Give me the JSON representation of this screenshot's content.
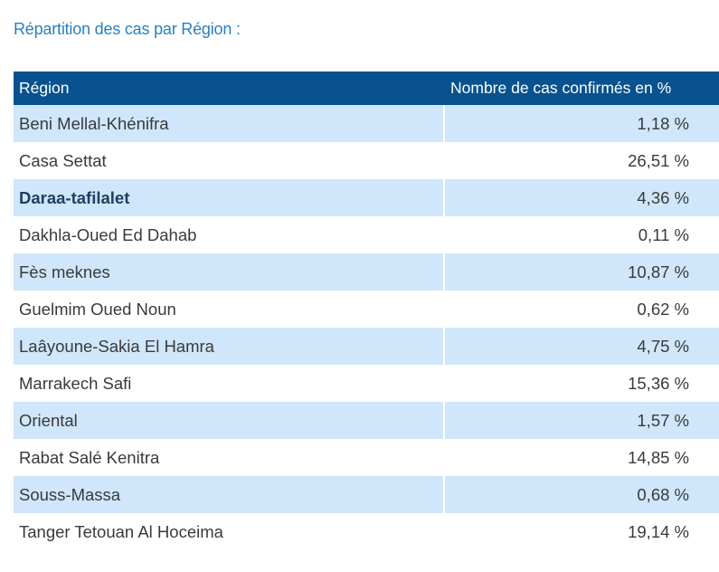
{
  "caption": "Répartition des cas par Région :",
  "table": {
    "headers": {
      "region": "Région",
      "value": "Nombre de cas confirmés en %"
    },
    "rows": [
      {
        "region": "Beni Mellal-Khénifra",
        "value": "1,18 %"
      },
      {
        "region": "Casa Settat",
        "value": "26,51 %"
      },
      {
        "region": "Daraa-tafilalet",
        "value": "4,36 %"
      },
      {
        "region": "Dakhla-Oued Ed Dahab",
        "value": "0,11 %"
      },
      {
        "region": "Fès meknes",
        "value": "10,87 %"
      },
      {
        "region": "Guelmim Oued Noun",
        "value": "0,62 %"
      },
      {
        "region": "Laâyoune-Sakia El Hamra",
        "value": "4,75 %"
      },
      {
        "region": "Marrakech Safi",
        "value": "15,36 %"
      },
      {
        "region": "Oriental",
        "value": "1,57 %"
      },
      {
        "region": "Rabat Salé Kenitra",
        "value": "14,85 %"
      },
      {
        "region": "Souss-Massa",
        "value": "0,68 %"
      },
      {
        "region": "Tanger Tetouan Al Hoceima",
        "value": "19,14 %"
      }
    ]
  },
  "colors": {
    "header_bg": "#08528f",
    "shaded_row": "#cfe6fb",
    "caption_text": "#2a7fbf"
  }
}
